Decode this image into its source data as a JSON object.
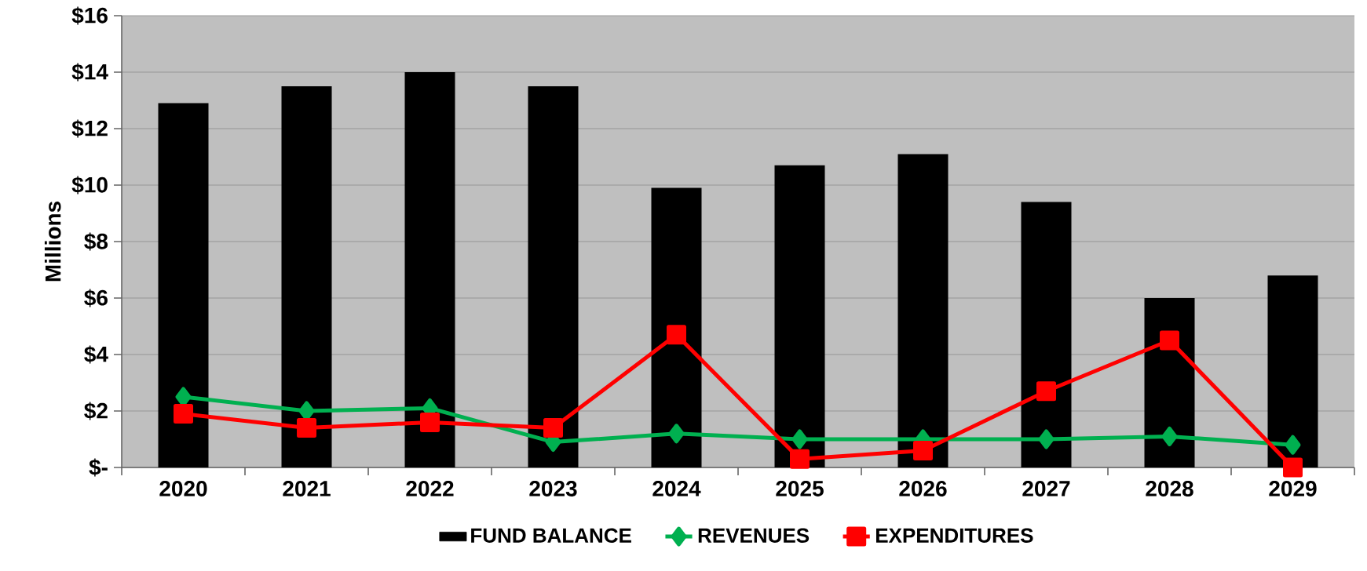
{
  "chart_data": {
    "type": "bar",
    "ylabel": "Millions",
    "categories": [
      "2020",
      "2021",
      "2022",
      "2023",
      "2024",
      "2025",
      "2026",
      "2027",
      "2028",
      "2029"
    ],
    "series": [
      {
        "name": "FUND BALANCE",
        "color": "#000000",
        "values": [
          12.9,
          13.5,
          14.0,
          13.5,
          9.9,
          10.7,
          11.1,
          9.4,
          6.0,
          6.8
        ]
      },
      {
        "name": "REVENUES",
        "type": "line",
        "marker": "diamond",
        "color": "#00b050",
        "values": [
          2.5,
          2.0,
          2.1,
          0.9,
          1.2,
          1.0,
          1.0,
          1.0,
          1.1,
          0.8
        ]
      },
      {
        "name": "EXPENDITURES",
        "type": "line",
        "marker": "square",
        "color": "#ff0000",
        "values": [
          1.9,
          1.4,
          1.6,
          1.4,
          4.7,
          0.3,
          0.6,
          2.7,
          4.5,
          0.0
        ]
      }
    ],
    "ylim": [
      0,
      16
    ],
    "yticks": [
      {
        "value": 0,
        "label": "$-"
      },
      {
        "value": 2,
        "label": "$2"
      },
      {
        "value": 4,
        "label": "$4"
      },
      {
        "value": 6,
        "label": "$6"
      },
      {
        "value": 8,
        "label": "$8"
      },
      {
        "value": 10,
        "label": "$10"
      },
      {
        "value": 12,
        "label": "$12"
      },
      {
        "value": 14,
        "label": "$14"
      },
      {
        "value": 16,
        "label": "$16"
      }
    ],
    "grid": "y",
    "legend": "bottom"
  }
}
